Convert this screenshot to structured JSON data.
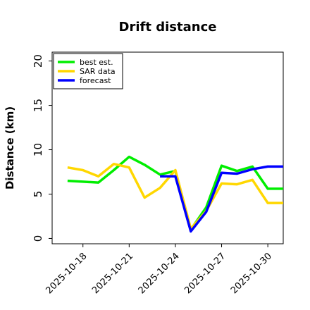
{
  "chart_data": {
    "type": "line",
    "title": "Drift distance",
    "xlabel": "",
    "ylabel": "Distance (km)",
    "ylim": [
      -0.6,
      21
    ],
    "xlim": [
      "2025-10-16",
      "2025-10-31"
    ],
    "yticks": [
      0,
      5,
      10,
      15,
      20
    ],
    "xticks": [
      "2025-10-18",
      "2025-10-21",
      "2025-10-24",
      "2025-10-27",
      "2025-10-30"
    ],
    "grid": false,
    "legend_position": "top-left",
    "x": [
      "2025-10-17",
      "2025-10-18",
      "2025-10-19",
      "2025-10-20",
      "2025-10-21",
      "2025-10-22",
      "2025-10-23",
      "2025-10-24",
      "2025-10-25",
      "2025-10-26",
      "2025-10-27",
      "2025-10-28",
      "2025-10-29",
      "2025-10-30",
      "2025-10-31"
    ],
    "series": [
      {
        "name": "best est.",
        "color": "#00ee00",
        "values": [
          6.5,
          6.4,
          6.3,
          7.7,
          9.2,
          8.3,
          7.2,
          7.6,
          1.0,
          3.5,
          8.2,
          7.6,
          8.1,
          5.6,
          5.6
        ]
      },
      {
        "name": "SAR data",
        "color": "#ffd700",
        "values": [
          8.0,
          7.7,
          7.0,
          8.4,
          8.0,
          4.6,
          5.7,
          7.7,
          1.1,
          3.1,
          6.2,
          6.1,
          6.6,
          4.0,
          4.0
        ]
      },
      {
        "name": "forecast",
        "color": "#0000ff",
        "values": [
          null,
          null,
          null,
          null,
          null,
          null,
          7.0,
          7.0,
          0.8,
          3.0,
          7.4,
          7.3,
          7.8,
          8.1,
          8.1
        ]
      }
    ]
  }
}
